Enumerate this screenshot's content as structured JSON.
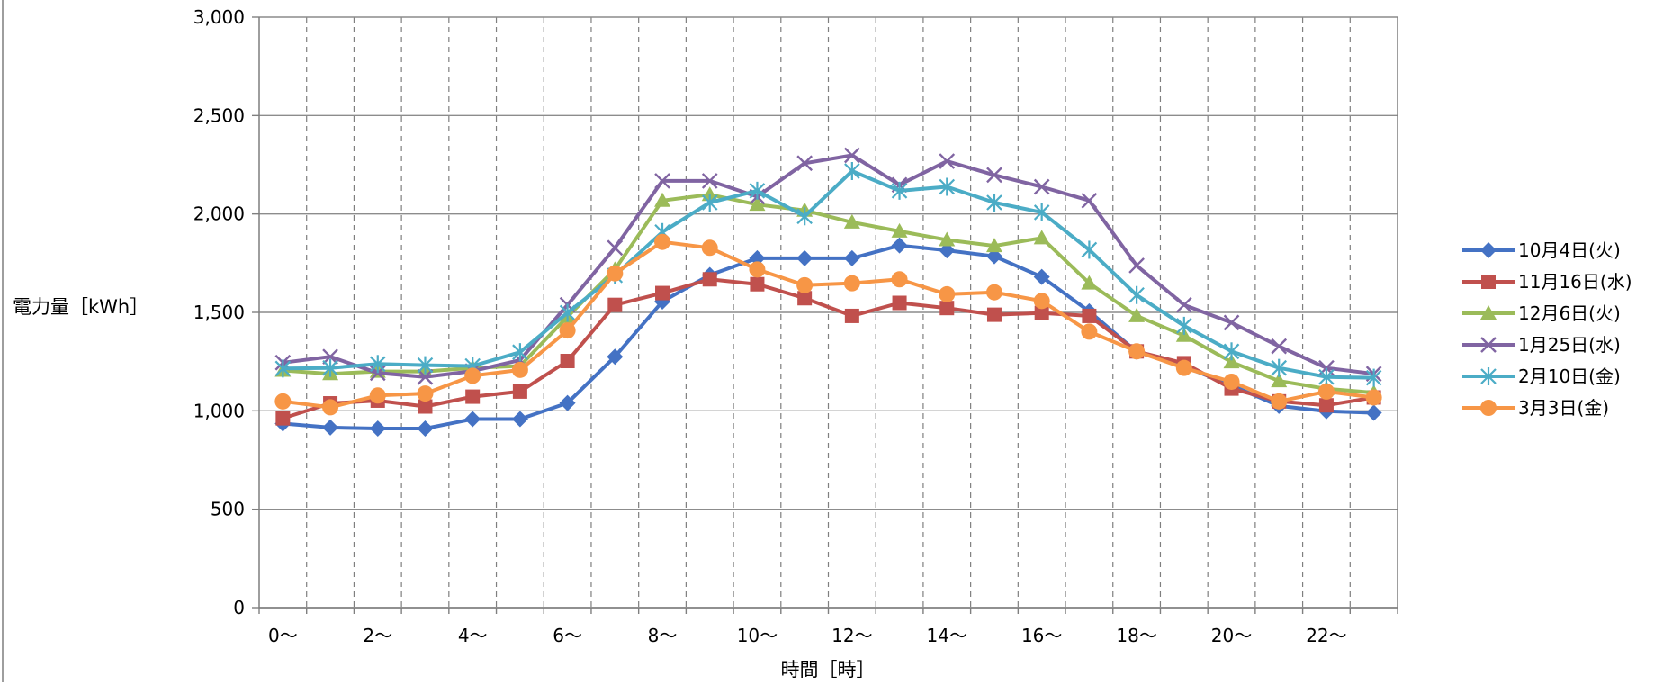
{
  "chart_data": {
    "type": "line",
    "title": "",
    "xlabel": "時間［時］",
    "ylabel": "電力量［kWh］",
    "ylim": [
      0,
      3000
    ],
    "yticks": [
      0,
      500,
      1000,
      1500,
      2000,
      2500,
      3000
    ],
    "ytick_labels": [
      "0",
      "500",
      "1,000",
      "1,500",
      "2,000",
      "2,500",
      "3,000"
    ],
    "x": [
      0,
      1,
      2,
      3,
      4,
      5,
      6,
      7,
      8,
      9,
      10,
      11,
      12,
      13,
      14,
      15,
      16,
      17,
      18,
      19,
      20,
      21,
      22,
      23
    ],
    "xtick_labels": [
      "0～",
      "",
      "2～",
      "",
      "4～",
      "",
      "6～",
      "",
      "8～",
      "",
      "10～",
      "",
      "12～",
      "",
      "14～",
      "",
      "16～",
      "",
      "18～",
      "",
      "20～",
      "",
      "22～",
      ""
    ],
    "grid": "y solid, x dashed",
    "legend_position": "right",
    "series": [
      {
        "name": "10月4日(火)",
        "color": "#4472C4",
        "marker": "diamond",
        "values": [
          935,
          915,
          910,
          910,
          958,
          958,
          1040,
          1275,
          1555,
          1690,
          1775,
          1775,
          1775,
          1840,
          1815,
          1785,
          1680,
          1505,
          1300,
          1225,
          1130,
          1025,
          998,
          990
        ]
      },
      {
        "name": "11月16日(水)",
        "color": "#C0504D",
        "marker": "square",
        "values": [
          962,
          1038,
          1052,
          1022,
          1072,
          1098,
          1253,
          1538,
          1598,
          1668,
          1643,
          1572,
          1482,
          1548,
          1522,
          1488,
          1497,
          1482,
          1302,
          1242,
          1113,
          1048,
          1028,
          1068
        ]
      },
      {
        "name": "12月6日(火)",
        "color": "#9BBB59",
        "marker": "triangle",
        "values": [
          1205,
          1188,
          1200,
          1200,
          1218,
          1228,
          1478,
          1718,
          2068,
          2098,
          2048,
          2018,
          1958,
          1912,
          1868,
          1838,
          1878,
          1648,
          1482,
          1382,
          1248,
          1152,
          1112,
          1092
        ]
      },
      {
        "name": "1月25日(水)",
        "color": "#8064A2",
        "marker": "x",
        "values": [
          1245,
          1275,
          1192,
          1172,
          1202,
          1258,
          1538,
          1828,
          2168,
          2168,
          2088,
          2258,
          2298,
          2148,
          2268,
          2198,
          2138,
          2068,
          1738,
          1538,
          1448,
          1328,
          1218,
          1188
        ]
      },
      {
        "name": "2月10日(金)",
        "color": "#4BACC6",
        "marker": "star",
        "values": [
          1215,
          1218,
          1238,
          1232,
          1228,
          1298,
          1498,
          1688,
          1908,
          2058,
          2118,
          1988,
          2218,
          2118,
          2138,
          2058,
          2008,
          1818,
          1588,
          1432,
          1302,
          1218,
          1172,
          1168
        ]
      },
      {
        "name": "3月3日(金)",
        "color": "#F79646",
        "marker": "circle",
        "values": [
          1048,
          1018,
          1078,
          1088,
          1178,
          1208,
          1408,
          1698,
          1858,
          1828,
          1718,
          1638,
          1648,
          1668,
          1592,
          1602,
          1558,
          1402,
          1302,
          1218,
          1148,
          1048,
          1098,
          1068
        ]
      }
    ]
  }
}
